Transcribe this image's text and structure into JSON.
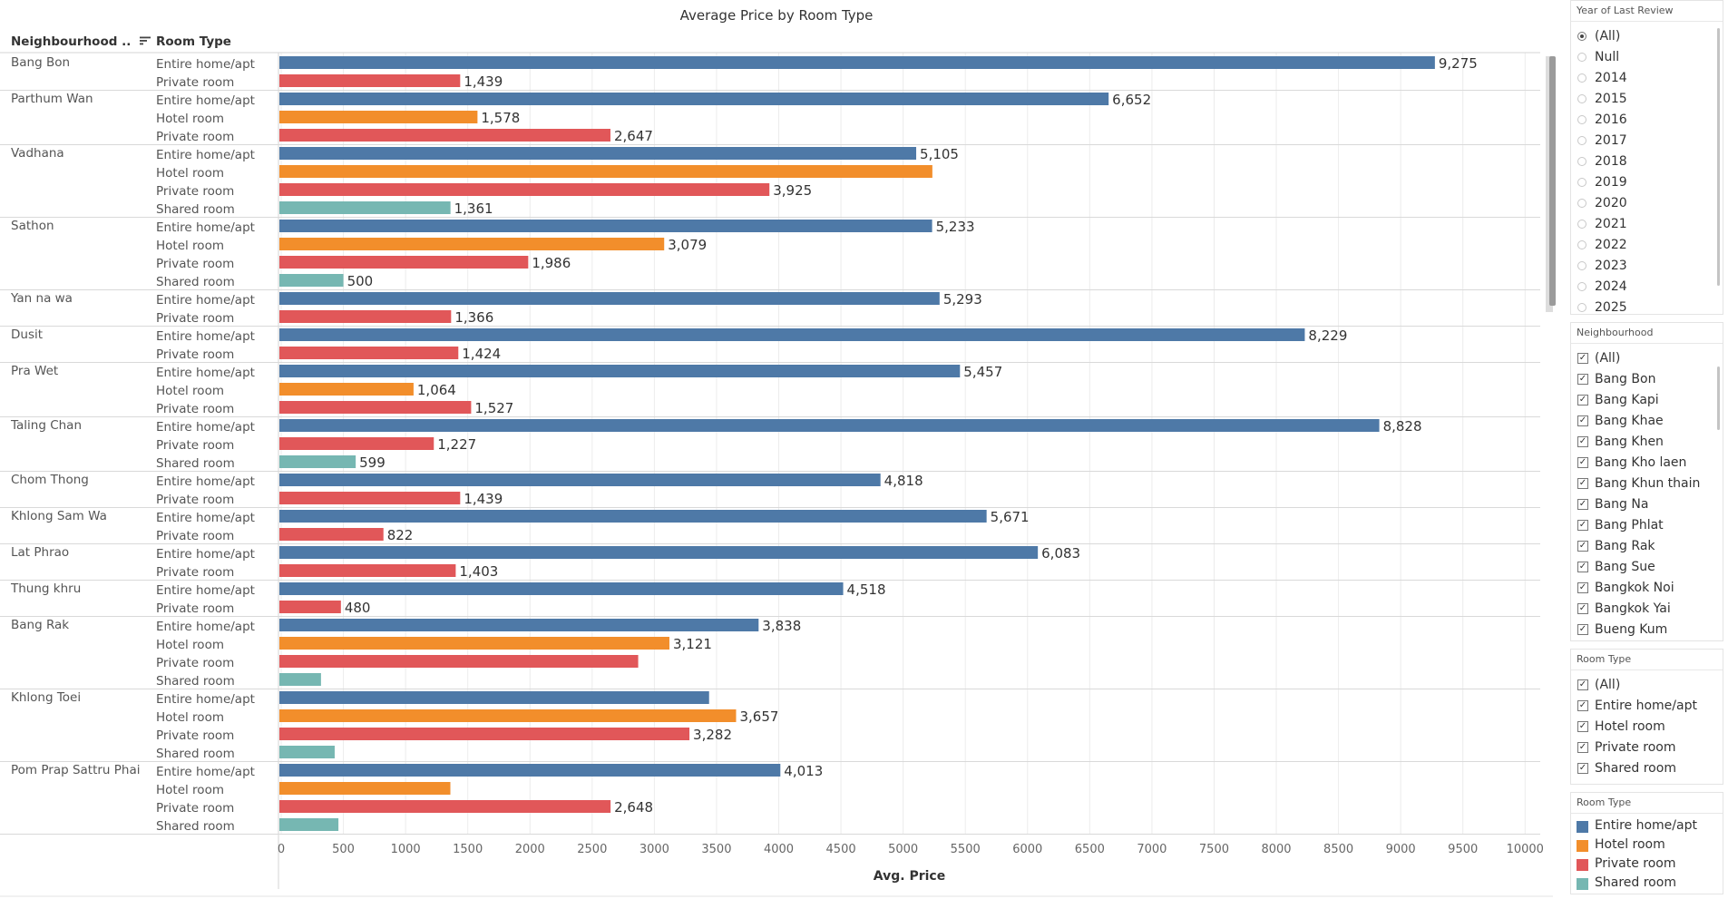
{
  "chart_data": {
    "type": "bar",
    "title": "Average Price by Room Type",
    "row_headers": [
      "Neighbourhood ..",
      "Room Type"
    ],
    "xlabel": "Avg. Price",
    "ylabel": "",
    "xlim": [
      0,
      10100
    ],
    "xticks": [
      0,
      500,
      1000,
      1500,
      2000,
      2500,
      3000,
      3500,
      4000,
      4500,
      5000,
      5500,
      6000,
      6500,
      7000,
      7500,
      8000,
      8500,
      9000,
      9500,
      10000
    ],
    "grid": true,
    "series_colors": {
      "Entire home/apt": "#4e79a7",
      "Hotel room": "#f28e2b",
      "Private room": "#e15759",
      "Shared room": "#76b7b2"
    },
    "groups": [
      {
        "neighbourhood": "Bang Bon",
        "rows": [
          {
            "room_type": "Entire home/apt",
            "value": 9275,
            "label": "9,275"
          },
          {
            "room_type": "Private room",
            "value": 1439,
            "label": "1,439"
          }
        ]
      },
      {
        "neighbourhood": "Parthum Wan",
        "rows": [
          {
            "room_type": "Entire home/apt",
            "value": 6652,
            "label": "6,652"
          },
          {
            "room_type": "Hotel room",
            "value": 1578,
            "label": "1,578"
          },
          {
            "room_type": "Private room",
            "value": 2647,
            "label": "2,647"
          }
        ]
      },
      {
        "neighbourhood": "Vadhana",
        "rows": [
          {
            "room_type": "Entire home/apt",
            "value": 5105,
            "label": "5,105"
          },
          {
            "room_type": "Hotel room",
            "value": 5235,
            "label": ""
          },
          {
            "room_type": "Private room",
            "value": 3925,
            "label": "3,925"
          },
          {
            "room_type": "Shared room",
            "value": 1361,
            "label": "1,361"
          }
        ]
      },
      {
        "neighbourhood": "Sathon",
        "rows": [
          {
            "room_type": "Entire home/apt",
            "value": 5233,
            "label": "5,233"
          },
          {
            "room_type": "Hotel room",
            "value": 3079,
            "label": "3,079"
          },
          {
            "room_type": "Private room",
            "value": 1986,
            "label": "1,986"
          },
          {
            "room_type": "Shared room",
            "value": 500,
            "label": "500"
          }
        ]
      },
      {
        "neighbourhood": "Yan na wa",
        "rows": [
          {
            "room_type": "Entire home/apt",
            "value": 5293,
            "label": "5,293"
          },
          {
            "room_type": "Private room",
            "value": 1366,
            "label": "1,366"
          }
        ]
      },
      {
        "neighbourhood": "Dusit",
        "rows": [
          {
            "room_type": "Entire home/apt",
            "value": 8229,
            "label": "8,229"
          },
          {
            "room_type": "Private room",
            "value": 1424,
            "label": "1,424"
          }
        ]
      },
      {
        "neighbourhood": "Pra Wet",
        "rows": [
          {
            "room_type": "Entire home/apt",
            "value": 5457,
            "label": "5,457"
          },
          {
            "room_type": "Hotel room",
            "value": 1064,
            "label": "1,064"
          },
          {
            "room_type": "Private room",
            "value": 1527,
            "label": "1,527"
          }
        ]
      },
      {
        "neighbourhood": "Taling Chan",
        "rows": [
          {
            "room_type": "Entire home/apt",
            "value": 8828,
            "label": "8,828"
          },
          {
            "room_type": "Private room",
            "value": 1227,
            "label": "1,227"
          },
          {
            "room_type": "Shared room",
            "value": 599,
            "label": "599"
          }
        ]
      },
      {
        "neighbourhood": "Chom Thong",
        "rows": [
          {
            "room_type": "Entire home/apt",
            "value": 4818,
            "label": "4,818"
          },
          {
            "room_type": "Private room",
            "value": 1439,
            "label": "1,439"
          }
        ]
      },
      {
        "neighbourhood": "Khlong Sam Wa",
        "rows": [
          {
            "room_type": "Entire home/apt",
            "value": 5671,
            "label": "5,671"
          },
          {
            "room_type": "Private room",
            "value": 822,
            "label": "822"
          }
        ]
      },
      {
        "neighbourhood": "Lat Phrao",
        "rows": [
          {
            "room_type": "Entire home/apt",
            "value": 6083,
            "label": "6,083"
          },
          {
            "room_type": "Private room",
            "value": 1403,
            "label": "1,403"
          }
        ]
      },
      {
        "neighbourhood": "Thung khru",
        "rows": [
          {
            "room_type": "Entire home/apt",
            "value": 4518,
            "label": "4,518"
          },
          {
            "room_type": "Private room",
            "value": 480,
            "label": "480"
          }
        ]
      },
      {
        "neighbourhood": "Bang Rak",
        "rows": [
          {
            "room_type": "Entire home/apt",
            "value": 3838,
            "label": "3,838"
          },
          {
            "room_type": "Hotel room",
            "value": 3121,
            "label": "3,121"
          },
          {
            "room_type": "Private room",
            "value": 2870,
            "label": ""
          },
          {
            "room_type": "Shared room",
            "value": 320,
            "label": ""
          }
        ]
      },
      {
        "neighbourhood": "Khlong Toei",
        "rows": [
          {
            "room_type": "Entire home/apt",
            "value": 3440,
            "label": ""
          },
          {
            "room_type": "Hotel room",
            "value": 3657,
            "label": "3,657"
          },
          {
            "room_type": "Private room",
            "value": 3282,
            "label": "3,282"
          },
          {
            "room_type": "Shared room",
            "value": 430,
            "label": ""
          }
        ]
      },
      {
        "neighbourhood": "Pom Prap Sattru Phai",
        "rows": [
          {
            "room_type": "Entire home/apt",
            "value": 4013,
            "label": "4,013"
          },
          {
            "room_type": "Hotel room",
            "value": 1360,
            "label": ""
          },
          {
            "room_type": "Private room",
            "value": 2648,
            "label": "2,648"
          },
          {
            "room_type": "Shared room",
            "value": 460,
            "label": ""
          }
        ]
      }
    ]
  },
  "filters": {
    "year_of_last_review": {
      "title": "Year of Last Review",
      "selected": "(All)",
      "options": [
        "(All)",
        "Null",
        "2014",
        "2015",
        "2016",
        "2017",
        "2018",
        "2019",
        "2020",
        "2021",
        "2022",
        "2023",
        "2024",
        "2025"
      ]
    },
    "neighbourhood": {
      "title": "Neighbourhood",
      "options": [
        "(All)",
        "Bang Bon",
        "Bang Kapi",
        "Bang Khae",
        "Bang Khen",
        "Bang Kho laen",
        "Bang Khun thain",
        "Bang Na",
        "Bang Phlat",
        "Bang Rak",
        "Bang Sue",
        "Bangkok Noi",
        "Bangkok Yai",
        "Bueng Kum"
      ]
    },
    "room_type": {
      "title": "Room Type",
      "options": [
        "(All)",
        "Entire home/apt",
        "Hotel room",
        "Private room",
        "Shared room"
      ]
    }
  },
  "legend": {
    "title": "Room Type",
    "items": [
      {
        "label": "Entire home/apt",
        "color": "#4e79a7"
      },
      {
        "label": "Hotel room",
        "color": "#f28e2b"
      },
      {
        "label": "Private room",
        "color": "#e15759"
      },
      {
        "label": "Shared room",
        "color": "#76b7b2"
      }
    ]
  }
}
